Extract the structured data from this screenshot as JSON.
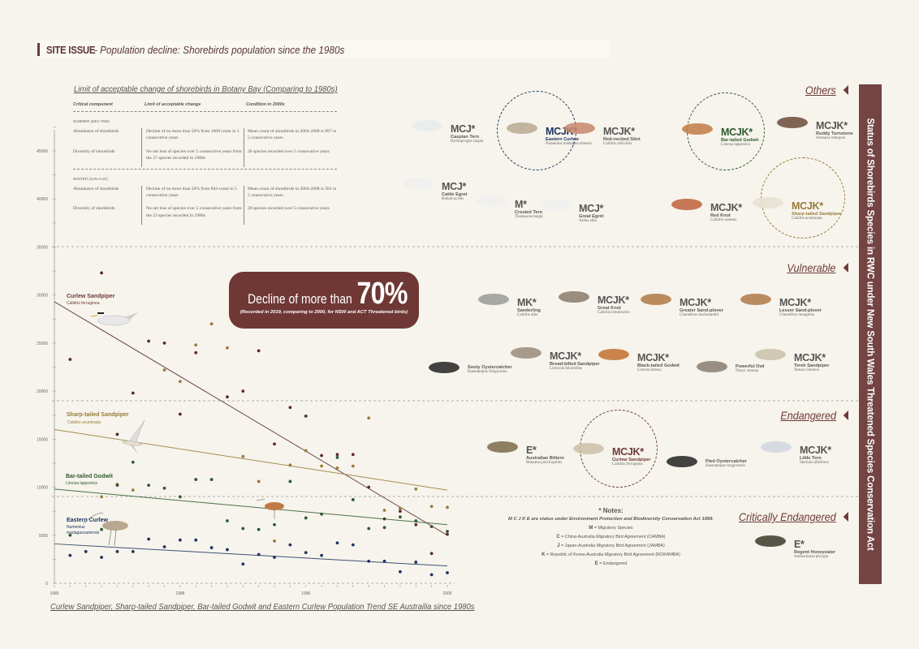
{
  "header": {
    "tag": "SITE ISSUE",
    "subtitle": "- Population decline: Shorebirds population since the 1980s"
  },
  "lac": {
    "title": "Limit of acceptable change of shorebirds in Botany Bay (Comparing to 1980s)",
    "columns": [
      "Critical component",
      "Limit of acceptable change",
      "Condition in 2000s"
    ],
    "summer": {
      "label": "SUMMER (DEC-FEB)",
      "rows": [
        [
          "Abundance of shorebirds",
          "Decline of no more than 50% from 1668 count in 5 consecutive years",
          "Mean count of shorebirds in 2004-2008 is 897 in 5 consecutive years"
        ],
        [
          "Diversity of shorebirds",
          "No net loss of species over 5 consecutive years from the 27 species recorded in 1980s",
          "26 species recorded over 5 consecutive years"
        ]
      ]
    },
    "winter": {
      "label": "WINTER (JUN-AUG)",
      "rows": [
        [
          "Abundance of shorebirds",
          "Decline of no more than 50% from 604 count in 5 consecutive years",
          "Mean count of shorebirds in 2004-2008 is 391 in 5 consecutive years"
        ],
        [
          "Diversity of shorebirds",
          "No net loss of species over 5 consecutive years from the 23 species recorded in 1980s",
          "20 species recorded over 5 consecutive years"
        ]
      ]
    }
  },
  "decline": {
    "text": "Decline of more than",
    "percent": "70%",
    "note": "(Recorded in 2019, comparing to 2000, for NSW and ACT Threatened birds)"
  },
  "chart_caption": "Curlew Sandpiper, Sharp-tailed Sandpiper, Bar-tailed Godwit and Eastern Curlew Population Trend SE Austrailia since 1980s",
  "chart_data": {
    "type": "scatter",
    "title": "Curlew Sandpiper, Sharp-tailed Sandpiper, Bar-tailed Godwit and Eastern Curlew Population Trend SE Austrailia since 1980s",
    "xlabel": "",
    "ylabel": "",
    "xlim": [
      1980,
      2005
    ],
    "ylim": [
      0,
      45000
    ],
    "x_ticks": [
      "1980",
      "1988",
      "1996",
      "2005"
    ],
    "y_ticks": [
      0,
      5000,
      10000,
      15000,
      20000,
      25000,
      30000,
      35000,
      40000,
      45000
    ],
    "grid": "dashed horizontal reference lines",
    "legend": "inline labels",
    "series": [
      {
        "name": "Curlew Sandpiper",
        "scientific": "Calidris ferruginea",
        "color": "#5a2a2a",
        "points": [
          [
            1981,
            23300
          ],
          [
            1983,
            32300
          ],
          [
            1984,
            15500
          ],
          [
            1985,
            19800
          ],
          [
            1986,
            25200
          ],
          [
            1987,
            25000
          ],
          [
            1988,
            17600
          ],
          [
            1989,
            24000
          ],
          [
            1991,
            19400
          ],
          [
            1992,
            20000
          ],
          [
            1993,
            24200
          ],
          [
            1994,
            14500
          ],
          [
            1995,
            18300
          ],
          [
            1996,
            17400
          ],
          [
            1997,
            13300
          ],
          [
            1998,
            13400
          ],
          [
            1999,
            13400
          ],
          [
            2000,
            10000
          ],
          [
            2001,
            6700
          ],
          [
            2002,
            7500
          ],
          [
            2003,
            6100
          ],
          [
            2004,
            3100
          ],
          [
            2005,
            5100
          ]
        ],
        "trend": [
          [
            1980,
            29300
          ],
          [
            2005,
            5000
          ]
        ]
      },
      {
        "name": "Sharp-tailed Sandpiper",
        "scientific": "Calidris acuminata",
        "color": "#9a7a3a",
        "points": [
          [
            1983,
            9000
          ],
          [
            1984,
            10300
          ],
          [
            1985,
            9700
          ],
          [
            1987,
            22200
          ],
          [
            1988,
            21000
          ],
          [
            1989,
            24800
          ],
          [
            1990,
            27000
          ],
          [
            1991,
            24500
          ],
          [
            1992,
            13200
          ],
          [
            1993,
            10600
          ],
          [
            1994,
            4400
          ],
          [
            1995,
            12300
          ],
          [
            1996,
            13800
          ],
          [
            1997,
            12200
          ],
          [
            1998,
            12000
          ],
          [
            1999,
            12200
          ],
          [
            2000,
            17200
          ],
          [
            2001,
            7600
          ],
          [
            2002,
            7800
          ],
          [
            2003,
            9800
          ],
          [
            2004,
            8000
          ],
          [
            2005,
            7900
          ]
        ],
        "trend": [
          [
            1980,
            16000
          ],
          [
            2005,
            9700
          ]
        ]
      },
      {
        "name": "Bar-tailed Godwit",
        "scientific": "Limosa lapponica",
        "color": "#2f5a2f",
        "points": [
          [
            1981,
            5000
          ],
          [
            1983,
            5600
          ],
          [
            1984,
            10200
          ],
          [
            1985,
            12600
          ],
          [
            1986,
            10200
          ],
          [
            1987,
            9900
          ],
          [
            1988,
            9000
          ],
          [
            1989,
            10800
          ],
          [
            1990,
            10800
          ],
          [
            1991,
            6500
          ],
          [
            1992,
            5700
          ],
          [
            1993,
            5600
          ],
          [
            1994,
            6100
          ],
          [
            1995,
            10600
          ],
          [
            1996,
            6800
          ],
          [
            1997,
            7200
          ],
          [
            1998,
            13100
          ],
          [
            1999,
            8700
          ],
          [
            2000,
            5700
          ],
          [
            2001,
            5800
          ],
          [
            2002,
            6900
          ],
          [
            2003,
            6500
          ],
          [
            2004,
            5900
          ],
          [
            2005,
            5400
          ]
        ],
        "trend": [
          [
            1980,
            9800
          ],
          [
            2005,
            6100
          ]
        ]
      },
      {
        "name": "Eastern Curlew",
        "scientific": "Numenius madagascariensis",
        "color": "#1f3560",
        "points": [
          [
            1981,
            2900
          ],
          [
            1982,
            3300
          ],
          [
            1983,
            2700
          ],
          [
            1984,
            3300
          ],
          [
            1985,
            3300
          ],
          [
            1986,
            4600
          ],
          [
            1987,
            3800
          ],
          [
            1988,
            4500
          ],
          [
            1989,
            4500
          ],
          [
            1990,
            3700
          ],
          [
            1991,
            3500
          ],
          [
            1992,
            2000
          ],
          [
            1993,
            3000
          ],
          [
            1994,
            2700
          ],
          [
            1995,
            4000
          ],
          [
            1996,
            3200
          ],
          [
            1997,
            2900
          ],
          [
            1998,
            4200
          ],
          [
            1999,
            4000
          ],
          [
            2000,
            2300
          ],
          [
            2001,
            2300
          ],
          [
            2002,
            1200
          ],
          [
            2003,
            2200
          ],
          [
            2004,
            900
          ],
          [
            2005,
            1100
          ]
        ],
        "trend": [
          [
            1980,
            4100
          ],
          [
            2005,
            1800
          ]
        ]
      }
    ]
  },
  "status_panel": "Status of Shorebirds Species in RWC under New South Wales Threatened Species Conservation Act",
  "categories": {
    "others": "Others",
    "vulnerable": "Vulnerable",
    "endangered": "Endangered",
    "critically": "Critically Endangered"
  },
  "birds": {
    "others": [
      {
        "code": "MCJ*",
        "name": "Caspian Tern",
        "sci": "Hydroprogne caspia"
      },
      {
        "code": "MCJK*",
        "name": "Eastern Curlew",
        "sci": "Numenius madagascariensis"
      },
      {
        "code": "MCJK*",
        "name": "Red-necked Stint",
        "sci": "Calidris ruficollis"
      },
      {
        "code": "MCJK*",
        "name": "Bar-tailed Godwit",
        "sci": "Limosa lapponica"
      },
      {
        "code": "MCJK*",
        "name": "Ruddy Turnstone",
        "sci": "Arenaria interpres"
      },
      {
        "code": "MCJ*",
        "name": "Cattle Egret",
        "sci": "Bubulcus ibis"
      },
      {
        "code": "M*",
        "name": "Crested Tern",
        "sci": "Thalasseus bergii"
      },
      {
        "code": "MCJ*",
        "name": "Great Egret",
        "sci": "Ardea alba"
      },
      {
        "code": "MCJK*",
        "name": "Red Knot",
        "sci": "Calidris canutus"
      },
      {
        "code": "MCJK*",
        "name": "Sharp-tailed Sandpiper",
        "sci": "Calidris acuminata"
      }
    ],
    "vulnerable": [
      {
        "code": "MK*",
        "name": "Sanderling",
        "sci": "Calidris alba"
      },
      {
        "code": "MCJK*",
        "name": "Great Knot",
        "sci": "Calidris tenuirostris"
      },
      {
        "code": "MCJK*",
        "name": "Greater Sand-plover",
        "sci": "Charadrius leschenaultii"
      },
      {
        "code": "MCJK*",
        "name": "Lesser Sand-plover",
        "sci": "Charadrius mongolus"
      },
      {
        "code": "",
        "name": "Sooty Oystercatcher",
        "sci": "Haematopus fuliginosus"
      },
      {
        "code": "MCJK*",
        "name": "Broad-billed Sandpiper",
        "sci": "Limicola falcinellus"
      },
      {
        "code": "MCJK*",
        "name": "Black-tailed Godwit",
        "sci": "Limosa limosa"
      },
      {
        "code": "",
        "name": "Powerful Owl",
        "sci": "Ninox strenua"
      },
      {
        "code": "MCJK*",
        "name": "Terek Sandpiper",
        "sci": "Xenus cinereus"
      }
    ],
    "endangered": [
      {
        "code": "E*",
        "name": "Australian Bittern",
        "sci": "Botaurus poiciloptilus"
      },
      {
        "code": "MCJK*",
        "name": "Curlew Sandpiper",
        "sci": "Calidris ferruginea"
      },
      {
        "code": "",
        "name": "Pied Oystercatcher",
        "sci": "Haematopus longirostris"
      },
      {
        "code": "MCJK*",
        "name": "Little Tern",
        "sci": "Sternula albifrons"
      }
    ],
    "critically": [
      {
        "code": "E*",
        "name": "Regent Honeyeater",
        "sci": "Anthochaera phrygia"
      }
    ]
  },
  "notes": {
    "heading": "* Notes:",
    "lead": "M C J K E are status under Environment Protection and Biodiversity Conservation Act 1999.",
    "items": [
      {
        "k": "M",
        "v": " = Migratory Species"
      },
      {
        "k": "C",
        "v": " = China-Australia Migratory Bird Agreement (CAMBA)"
      },
      {
        "k": "J",
        "v": " = Japan-Australia Migratory Bird Agreement (JAMBA)"
      },
      {
        "k": "K",
        "v": " = Republic of Korea-Australia Migratory Bird Agreement (ROKAMBA)"
      },
      {
        "k": "E",
        "v": " = Endangered"
      }
    ]
  },
  "colors": {
    "brand": "#6f3835",
    "curlew_sandpiper": "#5a2a2a",
    "sharp_tailed": "#9a7a3a",
    "bar_tailed": "#2f5a2f",
    "eastern_curlew": "#1f3560"
  }
}
